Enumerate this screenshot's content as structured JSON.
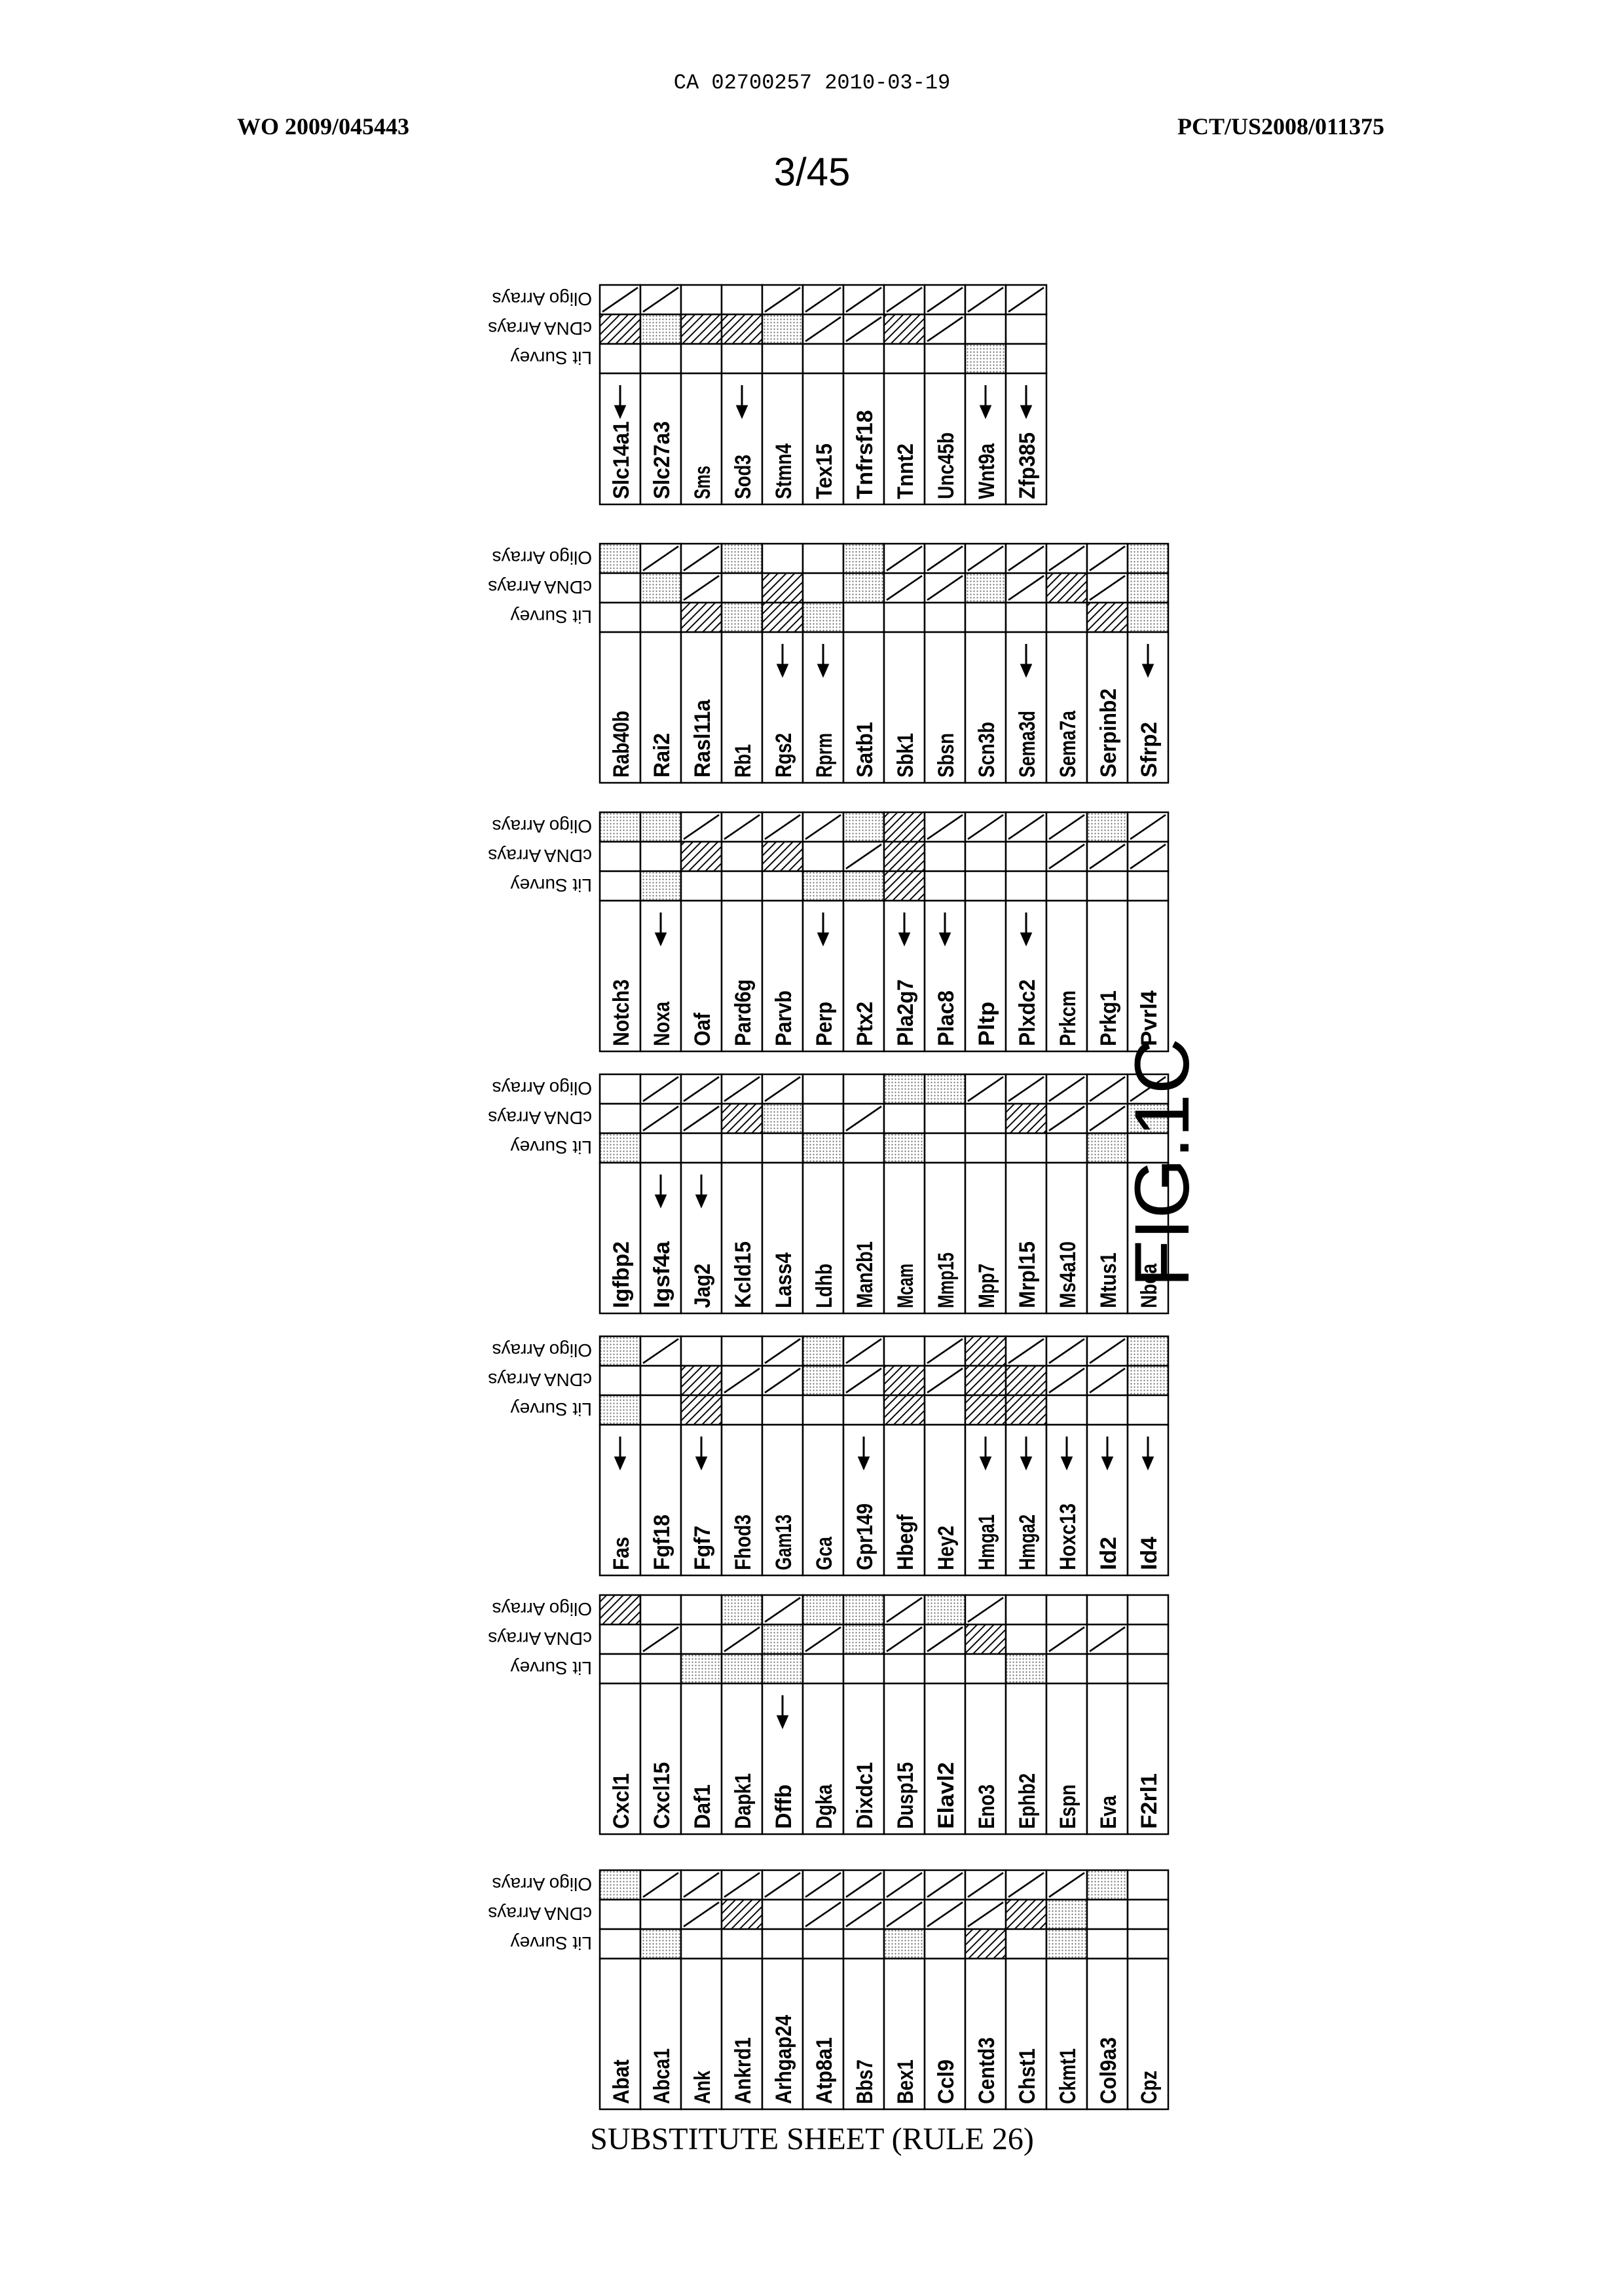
{
  "header": {
    "ca_number": "CA 02700257 2010-03-19",
    "wo_number": "WO 2009/045443",
    "pct_number": "PCT/US2008/011375",
    "sheet": "3/45"
  },
  "figure_label": "FIG.1C",
  "footer": "SUBSTITUTE SHEET (RULE 26)",
  "columns": [
    "Lit Survey",
    "cDNA Arrays",
    "Oligo Arrays"
  ],
  "legend_patterns": {
    "empty": "blank",
    "dots": "stippled",
    "hatch": "diagonal hatching",
    "slash": "single diagonal line"
  },
  "tables": [
    {
      "rows": [
        {
          "gene": "Abat",
          "arrow": false,
          "cells": [
            "empty",
            "empty",
            "dots"
          ]
        },
        {
          "gene": "Abca1",
          "arrow": false,
          "cells": [
            "dots",
            "empty",
            "slash"
          ]
        },
        {
          "gene": "Ank",
          "arrow": false,
          "cells": [
            "empty",
            "slash",
            "slash"
          ]
        },
        {
          "gene": "Ankrd1",
          "arrow": false,
          "cells": [
            "empty",
            "hatch",
            "slash"
          ]
        },
        {
          "gene": "Arhgap24",
          "arrow": false,
          "cells": [
            "empty",
            "empty",
            "slash"
          ]
        },
        {
          "gene": "Atp8a1",
          "arrow": false,
          "cells": [
            "empty",
            "slash",
            "slash"
          ]
        },
        {
          "gene": "Bbs7",
          "arrow": false,
          "cells": [
            "empty",
            "slash",
            "slash"
          ]
        },
        {
          "gene": "Bex1",
          "arrow": false,
          "cells": [
            "dots",
            "slash",
            "slash"
          ]
        },
        {
          "gene": "Ccl9",
          "arrow": false,
          "cells": [
            "empty",
            "slash",
            "slash"
          ]
        },
        {
          "gene": "Centd3",
          "arrow": false,
          "cells": [
            "hatch",
            "slash",
            "slash"
          ]
        },
        {
          "gene": "Chst1",
          "arrow": false,
          "cells": [
            "empty",
            "hatch",
            "slash"
          ]
        },
        {
          "gene": "Ckmt1",
          "arrow": false,
          "cells": [
            "dots",
            "dots",
            "slash"
          ]
        },
        {
          "gene": "Col9a3",
          "arrow": false,
          "cells": [
            "empty",
            "empty",
            "dots"
          ]
        },
        {
          "gene": "Cpz",
          "arrow": false,
          "cells": [
            "empty",
            "empty",
            "empty"
          ]
        }
      ]
    },
    {
      "rows": [
        {
          "gene": "Cxcl1",
          "arrow": false,
          "cells": [
            "empty",
            "empty",
            "hatch"
          ]
        },
        {
          "gene": "Cxcl15",
          "arrow": false,
          "cells": [
            "empty",
            "slash",
            "empty"
          ]
        },
        {
          "gene": "Daf1",
          "arrow": false,
          "cells": [
            "dots",
            "empty",
            "empty"
          ]
        },
        {
          "gene": "Dapk1",
          "arrow": false,
          "cells": [
            "dots",
            "slash",
            "dots"
          ]
        },
        {
          "gene": "Dffb",
          "arrow": true,
          "cells": [
            "dots",
            "dots",
            "slash"
          ]
        },
        {
          "gene": "Dgka",
          "arrow": false,
          "cells": [
            "empty",
            "slash",
            "dots"
          ]
        },
        {
          "gene": "Dixdc1",
          "arrow": false,
          "cells": [
            "empty",
            "dots",
            "dots"
          ]
        },
        {
          "gene": "Dusp15",
          "arrow": false,
          "cells": [
            "empty",
            "slash",
            "slash"
          ]
        },
        {
          "gene": "Elavl2",
          "arrow": false,
          "cells": [
            "empty",
            "slash",
            "dots"
          ]
        },
        {
          "gene": "Eno3",
          "arrow": false,
          "cells": [
            "empty",
            "hatch",
            "slash"
          ]
        },
        {
          "gene": "Ephb2",
          "arrow": false,
          "cells": [
            "dots",
            "empty",
            "empty"
          ]
        },
        {
          "gene": "Espn",
          "arrow": false,
          "cells": [
            "empty",
            "slash",
            "empty"
          ]
        },
        {
          "gene": "Eva",
          "arrow": false,
          "cells": [
            "empty",
            "slash",
            "empty"
          ]
        },
        {
          "gene": "F2rl1",
          "arrow": false,
          "cells": [
            "empty",
            "empty",
            "empty"
          ]
        }
      ]
    },
    {
      "rows": [
        {
          "gene": "Fas",
          "arrow": true,
          "cells": [
            "dots",
            "empty",
            "dots"
          ]
        },
        {
          "gene": "Fgf18",
          "arrow": false,
          "cells": [
            "empty",
            "empty",
            "slash"
          ]
        },
        {
          "gene": "Fgf7",
          "arrow": true,
          "cells": [
            "hatch",
            "hatch",
            "empty"
          ]
        },
        {
          "gene": "Fhod3",
          "arrow": false,
          "cells": [
            "empty",
            "slash",
            "empty"
          ]
        },
        {
          "gene": "Gam13",
          "arrow": false,
          "cells": [
            "empty",
            "slash",
            "slash"
          ]
        },
        {
          "gene": "Gca",
          "arrow": false,
          "cells": [
            "empty",
            "dots",
            "dots"
          ]
        },
        {
          "gene": "Gpr149",
          "arrow": true,
          "cells": [
            "empty",
            "slash",
            "slash"
          ]
        },
        {
          "gene": "Hbegf",
          "arrow": false,
          "cells": [
            "hatch",
            "hatch",
            "empty"
          ]
        },
        {
          "gene": "Hey2",
          "arrow": false,
          "cells": [
            "empty",
            "slash",
            "slash"
          ]
        },
        {
          "gene": "Hmga1",
          "arrow": true,
          "cells": [
            "hatch",
            "hatch",
            "hatch"
          ]
        },
        {
          "gene": "Hmga2",
          "arrow": true,
          "cells": [
            "hatch",
            "hatch",
            "slash"
          ]
        },
        {
          "gene": "Hoxc13",
          "arrow": true,
          "cells": [
            "empty",
            "slash",
            "slash"
          ]
        },
        {
          "gene": "Id2",
          "arrow": true,
          "cells": [
            "empty",
            "slash",
            "slash"
          ]
        },
        {
          "gene": "Id4",
          "arrow": true,
          "cells": [
            "empty",
            "dots",
            "dots"
          ]
        }
      ]
    },
    {
      "rows": [
        {
          "gene": "Igfbp2",
          "arrow": false,
          "cells": [
            "dots",
            "empty",
            "empty"
          ]
        },
        {
          "gene": "Igsf4a",
          "arrow": true,
          "cells": [
            "empty",
            "slash",
            "slash"
          ]
        },
        {
          "gene": "Jag2",
          "arrow": true,
          "cells": [
            "empty",
            "slash",
            "slash"
          ]
        },
        {
          "gene": "Kcld15",
          "arrow": false,
          "cells": [
            "empty",
            "hatch",
            "slash"
          ]
        },
        {
          "gene": "Lass4",
          "arrow": false,
          "cells": [
            "empty",
            "dots",
            "slash"
          ]
        },
        {
          "gene": "Ldhb",
          "arrow": false,
          "cells": [
            "dots",
            "empty",
            "empty"
          ]
        },
        {
          "gene": "Man2b1",
          "arrow": false,
          "cells": [
            "empty",
            "slash",
            "empty"
          ]
        },
        {
          "gene": "Mcam",
          "arrow": false,
          "cells": [
            "dots",
            "empty",
            "dots"
          ]
        },
        {
          "gene": "Mmp15",
          "arrow": false,
          "cells": [
            "empty",
            "empty",
            "dots"
          ]
        },
        {
          "gene": "Mpp7",
          "arrow": false,
          "cells": [
            "empty",
            "empty",
            "slash"
          ]
        },
        {
          "gene": "Mrpl15",
          "arrow": false,
          "cells": [
            "empty",
            "hatch",
            "slash"
          ]
        },
        {
          "gene": "Ms4a10",
          "arrow": false,
          "cells": [
            "empty",
            "slash",
            "slash"
          ]
        },
        {
          "gene": "Mtus1",
          "arrow": false,
          "cells": [
            "dots",
            "slash",
            "slash"
          ]
        },
        {
          "gene": "Nbea",
          "arrow": false,
          "cells": [
            "empty",
            "dots",
            "slash"
          ]
        }
      ]
    },
    {
      "rows": [
        {
          "gene": "Notch3",
          "arrow": false,
          "cells": [
            "empty",
            "empty",
            "dots"
          ]
        },
        {
          "gene": "Noxa",
          "arrow": true,
          "cells": [
            "dots",
            "empty",
            "dots"
          ]
        },
        {
          "gene": "Oaf",
          "arrow": false,
          "cells": [
            "empty",
            "hatch",
            "slash"
          ]
        },
        {
          "gene": "Pard6g",
          "arrow": false,
          "cells": [
            "empty",
            "empty",
            "slash"
          ]
        },
        {
          "gene": "Parvb",
          "arrow": false,
          "cells": [
            "empty",
            "hatch",
            "slash"
          ]
        },
        {
          "gene": "Perp",
          "arrow": true,
          "cells": [
            "dots",
            "empty",
            "slash"
          ]
        },
        {
          "gene": "Ptx2",
          "arrow": false,
          "cells": [
            "dots",
            "slash",
            "dots"
          ]
        },
        {
          "gene": "Pla2g7",
          "arrow": true,
          "cells": [
            "hatch",
            "hatch",
            "hatch"
          ]
        },
        {
          "gene": "Plac8",
          "arrow": true,
          "cells": [
            "empty",
            "empty",
            "slash"
          ]
        },
        {
          "gene": "Pltp",
          "arrow": false,
          "cells": [
            "empty",
            "empty",
            "slash"
          ]
        },
        {
          "gene": "Plxdc2",
          "arrow": true,
          "cells": [
            "empty",
            "empty",
            "slash"
          ]
        },
        {
          "gene": "Prkcm",
          "arrow": false,
          "cells": [
            "empty",
            "slash",
            "slash"
          ]
        },
        {
          "gene": "Prkg1",
          "arrow": false,
          "cells": [
            "empty",
            "slash",
            "dots"
          ]
        },
        {
          "gene": "Pvrl4",
          "arrow": false,
          "cells": [
            "empty",
            "slash",
            "slash"
          ]
        }
      ]
    },
    {
      "rows": [
        {
          "gene": "Rab40b",
          "arrow": false,
          "cells": [
            "empty",
            "empty",
            "dots"
          ]
        },
        {
          "gene": "Rai2",
          "arrow": false,
          "cells": [
            "empty",
            "dots",
            "slash"
          ]
        },
        {
          "gene": "Rasl11a",
          "arrow": false,
          "cells": [
            "hatch",
            "slash",
            "slash"
          ]
        },
        {
          "gene": "Rb1",
          "arrow": false,
          "cells": [
            "dots",
            "empty",
            "dots"
          ]
        },
        {
          "gene": "Rgs2",
          "arrow": true,
          "cells": [
            "hatch",
            "hatch",
            "empty"
          ]
        },
        {
          "gene": "Rprm",
          "arrow": true,
          "cells": [
            "dots",
            "empty",
            "empty"
          ]
        },
        {
          "gene": "Satb1",
          "arrow": false,
          "cells": [
            "empty",
            "dots",
            "dots"
          ]
        },
        {
          "gene": "Sbk1",
          "arrow": false,
          "cells": [
            "empty",
            "slash",
            "slash"
          ]
        },
        {
          "gene": "Sbsn",
          "arrow": false,
          "cells": [
            "empty",
            "slash",
            "slash"
          ]
        },
        {
          "gene": "Scn3b",
          "arrow": false,
          "cells": [
            "empty",
            "dots",
            "slash"
          ]
        },
        {
          "gene": "Sema3d",
          "arrow": true,
          "cells": [
            "empty",
            "slash",
            "slash"
          ]
        },
        {
          "gene": "Sema7a",
          "arrow": false,
          "cells": [
            "empty",
            "hatch",
            "slash"
          ]
        },
        {
          "gene": "Serpinb2",
          "arrow": false,
          "cells": [
            "hatch",
            "slash",
            "slash"
          ]
        },
        {
          "gene": "Sfrp2",
          "arrow": true,
          "cells": [
            "dots",
            "dots",
            "dots"
          ]
        }
      ]
    },
    {
      "rows": [
        {
          "gene": "Slc14a1",
          "arrow": true,
          "cells": [
            "empty",
            "hatch",
            "slash"
          ]
        },
        {
          "gene": "Slc27a3",
          "arrow": false,
          "cells": [
            "empty",
            "dots",
            "slash"
          ]
        },
        {
          "gene": "Sms",
          "arrow": false,
          "cells": [
            "empty",
            "hatch",
            "empty"
          ]
        },
        {
          "gene": "Sod3",
          "arrow": true,
          "cells": [
            "empty",
            "hatch",
            "empty"
          ]
        },
        {
          "gene": "Stmn4",
          "arrow": false,
          "cells": [
            "empty",
            "dots",
            "slash"
          ]
        },
        {
          "gene": "Tex15",
          "arrow": false,
          "cells": [
            "empty",
            "slash",
            "slash"
          ]
        },
        {
          "gene": "Tnfrsf18",
          "arrow": false,
          "cells": [
            "empty",
            "slash",
            "slash"
          ]
        },
        {
          "gene": "Tnnt2",
          "arrow": false,
          "cells": [
            "empty",
            "hatch",
            "slash"
          ]
        },
        {
          "gene": "Unc45b",
          "arrow": false,
          "cells": [
            "empty",
            "slash",
            "slash"
          ]
        },
        {
          "gene": "Wnt9a",
          "arrow": true,
          "cells": [
            "dots",
            "empty",
            "slash"
          ]
        },
        {
          "gene": "Zfp385",
          "arrow": true,
          "cells": [
            "empty",
            "empty",
            "slash"
          ]
        }
      ]
    }
  ]
}
